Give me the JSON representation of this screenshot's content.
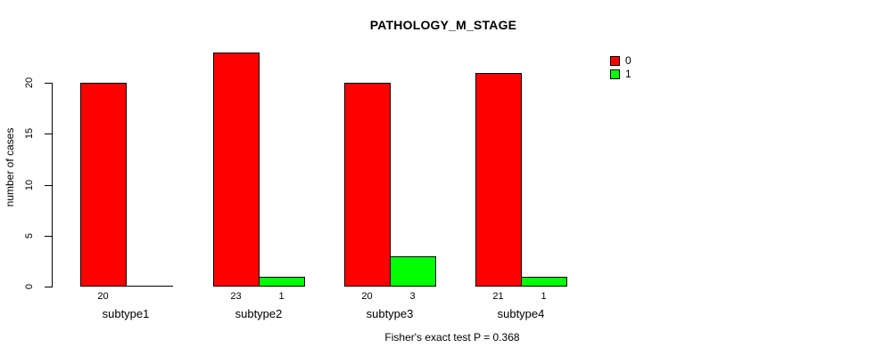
{
  "chart_data": {
    "type": "bar",
    "title": "PATHOLOGY_M_STAGE",
    "ylabel": "number of cases",
    "xlabel": "",
    "caption": "Fisher's exact test P = 0.368",
    "categories": [
      "subtype1",
      "subtype2",
      "subtype3",
      "subtype4"
    ],
    "series": [
      {
        "name": "0",
        "color": "#FF0000",
        "values": [
          20,
          23,
          20,
          21
        ]
      },
      {
        "name": "1",
        "color": "#00FF00",
        "values": [
          0,
          1,
          3,
          1
        ]
      }
    ],
    "bar_value_labels_shown": [
      "20",
      "23",
      "1",
      "20",
      "3",
      "21",
      "1"
    ],
    "ylim": [
      0,
      23
    ],
    "yticks": [
      0,
      5,
      10,
      15,
      20
    ],
    "grid": false,
    "legend": {
      "position": "top-right",
      "entries": [
        {
          "label": "0",
          "color": "#FF0000"
        },
        {
          "label": "1",
          "color": "#00FF00"
        }
      ]
    },
    "colors": {
      "axis": "#000000",
      "text": "#000000",
      "background": "#FFFFFF"
    }
  }
}
